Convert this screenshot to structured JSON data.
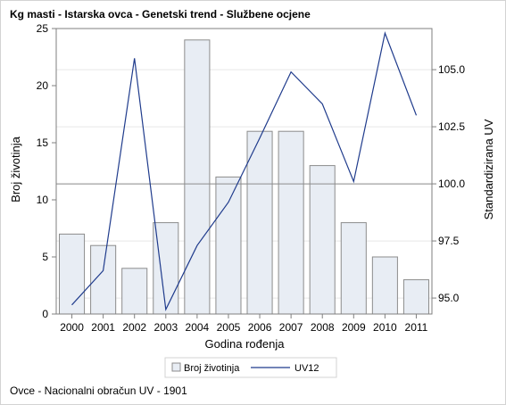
{
  "title": "Kg masti - Istarska ovca - Genetski trend - Službene ocjene",
  "footnote": "Ovce - Nacionalni obračun UV - 1901",
  "colors": {
    "bar_fill": "#e8edf4",
    "bar_stroke": "#8c8c8c",
    "line": "#1f3b8c",
    "reference": "#8c8c8c",
    "grid": "#e6e6e6",
    "axis": "#7f7f7f"
  },
  "chart_data": {
    "type": "bar",
    "title": "Kg masti - Istarska ovca - Genetski trend - Službene ocjene",
    "xlabel": "Godina rođenja",
    "ylabel": "Broj životinja",
    "y2label": "Standardizirana UV",
    "categories": [
      "2000",
      "2001",
      "2002",
      "2003",
      "2004",
      "2005",
      "2006",
      "2007",
      "2008",
      "2009",
      "2010",
      "2011"
    ],
    "ylim": [
      0,
      25
    ],
    "yticks": [
      "0",
      "5",
      "10",
      "15",
      "20",
      "25"
    ],
    "y2lim": [
      94.3,
      106.8
    ],
    "y2ticks": [
      "95.0",
      "97.5",
      "100.0",
      "102.5",
      "105.0"
    ],
    "reference_line_y2": 100.0,
    "grid": true,
    "legend_position": "bottom",
    "series": [
      {
        "name": "Broj životinja",
        "type": "bar",
        "axis": "left",
        "values": [
          7,
          6,
          4,
          8,
          24,
          12,
          16,
          16,
          13,
          8,
          5,
          3
        ]
      },
      {
        "name": "UV12",
        "type": "line",
        "axis": "right",
        "values": [
          94.7,
          96.2,
          105.5,
          94.5,
          97.3,
          99.2,
          102.0,
          104.9,
          103.5,
          100.1,
          106.6,
          103.0
        ]
      }
    ]
  }
}
